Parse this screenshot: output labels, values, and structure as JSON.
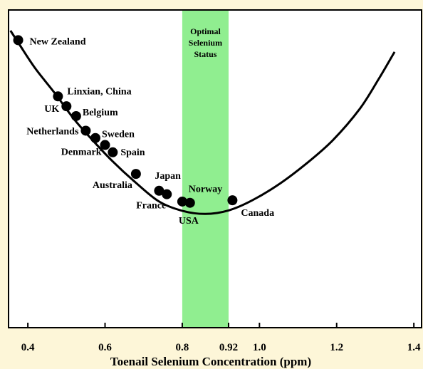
{
  "chart_data": {
    "type": "scatter",
    "title": "",
    "xlabel": "Toenail Selenium Concentration (ppm)",
    "ylabel": "",
    "xlim": [
      0.35,
      1.42
    ],
    "ylim": [
      0,
      100
    ],
    "x_ticks": [
      {
        "value": 0.4,
        "label": "0.4"
      },
      {
        "value": 0.6,
        "label": "0.6"
      },
      {
        "value": 0.8,
        "label": "0.8"
      },
      {
        "value": 0.92,
        "label": "0.92"
      },
      {
        "value": 1.0,
        "label": "1.0"
      },
      {
        "value": 1.2,
        "label": "1.2"
      },
      {
        "value": 1.4,
        "label": "1.4"
      }
    ],
    "optimal_band": {
      "x_start": 0.8,
      "x_end": 0.92,
      "label_lines": [
        "Optimal",
        "Selenium",
        "Status"
      ],
      "color": "#90ee90"
    },
    "curve": [
      {
        "x": 0.355,
        "y": 93.5
      },
      {
        "x": 0.38,
        "y": 88.8
      },
      {
        "x": 0.42,
        "y": 81.5
      },
      {
        "x": 0.47,
        "y": 73.8
      },
      {
        "x": 0.52,
        "y": 65.6
      },
      {
        "x": 0.57,
        "y": 58.7
      },
      {
        "x": 0.62,
        "y": 52.3
      },
      {
        "x": 0.68,
        "y": 45.6
      },
      {
        "x": 0.74,
        "y": 39.7
      },
      {
        "x": 0.8,
        "y": 36.8
      },
      {
        "x": 0.86,
        "y": 35.8
      },
      {
        "x": 0.92,
        "y": 36.9
      },
      {
        "x": 0.98,
        "y": 40.0
      },
      {
        "x": 1.05,
        "y": 45.1
      },
      {
        "x": 1.12,
        "y": 51.5
      },
      {
        "x": 1.19,
        "y": 59.0
      },
      {
        "x": 1.26,
        "y": 68.9
      },
      {
        "x": 1.31,
        "y": 78.5
      },
      {
        "x": 1.35,
        "y": 86.8
      }
    ],
    "series": [
      {
        "points": [
          {
            "name": "New Zealand",
            "x": 0.375,
            "y": 90.5
          },
          {
            "name": "Linxian, China",
            "x": 0.478,
            "y": 72.8
          },
          {
            "name": "UK",
            "x": 0.5,
            "y": 69.7
          },
          {
            "name": "Belgium",
            "x": 0.525,
            "y": 66.6
          },
          {
            "name": "Netherlands",
            "x": 0.55,
            "y": 62.0
          },
          {
            "name": "Sweden",
            "x": 0.575,
            "y": 59.7
          },
          {
            "name": "Denmark",
            "x": 0.6,
            "y": 57.5
          },
          {
            "name": "Spain",
            "x": 0.62,
            "y": 55.2
          },
          {
            "name": "Australia",
            "x": 0.68,
            "y": 48.4
          },
          {
            "name": "Japan",
            "x": 0.74,
            "y": 43.1
          },
          {
            "name": "France",
            "x": 0.76,
            "y": 42.0
          },
          {
            "name": "USA",
            "x": 0.8,
            "y": 39.7
          },
          {
            "name": "Norway",
            "x": 0.82,
            "y": 39.3
          },
          {
            "name": "Canada",
            "x": 0.93,
            "y": 40.1
          }
        ]
      }
    ],
    "colors": {
      "background": "#fdf6d8",
      "band": "#90ee90",
      "curve": "#000000",
      "points": "#000000"
    },
    "legend": "none",
    "grid": false
  }
}
